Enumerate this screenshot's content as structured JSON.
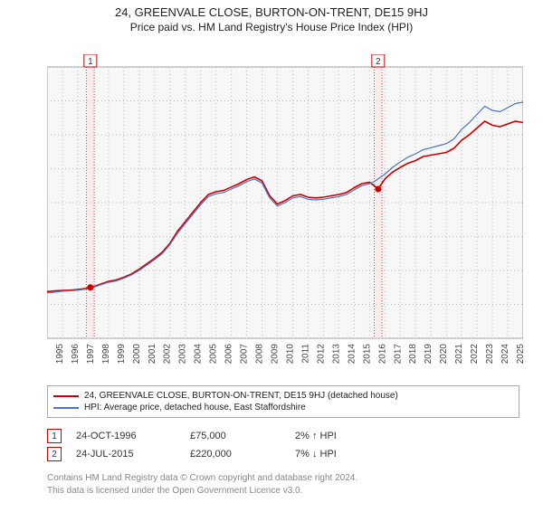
{
  "title": "24, GREENVALE CLOSE, BURTON-ON-TRENT, DE15 9HJ",
  "subtitle": "Price paid vs. HM Land Registry's House Price Index (HPI)",
  "chart": {
    "type": "line",
    "background_color": "#f7f7f7",
    "plot_border_color": "#999999",
    "grid_color": "#bbbbbb",
    "x": {
      "min": 1994,
      "max": 2025,
      "tick_step": 1,
      "label_fontsize": 10,
      "rotate": -90
    },
    "y": {
      "min": 0,
      "max": 400000,
      "tick_step": 50000,
      "prefix": "£",
      "suffix": "K",
      "divide": 1000,
      "label_fontsize": 10
    },
    "series": [
      {
        "key": "property",
        "label": "24, GREENVALE CLOSE, BURTON-ON-TRENT, DE15 9HJ (detached house)",
        "color": "#cc0000",
        "line_width": 1.6,
        "points": [
          [
            1994.0,
            69000
          ],
          [
            1994.5,
            70000
          ],
          [
            1995.0,
            70500
          ],
          [
            1995.5,
            71000
          ],
          [
            1996.0,
            72000
          ],
          [
            1996.5,
            73500
          ],
          [
            1996.82,
            75000
          ],
          [
            1997.0,
            76000
          ],
          [
            1997.5,
            80000
          ],
          [
            1998.0,
            84000
          ],
          [
            1998.5,
            86000
          ],
          [
            1999.0,
            90000
          ],
          [
            1999.5,
            95000
          ],
          [
            2000.0,
            102000
          ],
          [
            2000.5,
            110000
          ],
          [
            2001.0,
            118000
          ],
          [
            2001.5,
            127000
          ],
          [
            2002.0,
            140000
          ],
          [
            2002.5,
            158000
          ],
          [
            2003.0,
            172000
          ],
          [
            2003.5,
            186000
          ],
          [
            2004.0,
            200000
          ],
          [
            2004.5,
            212000
          ],
          [
            2005.0,
            216000
          ],
          [
            2005.5,
            218000
          ],
          [
            2006.0,
            223000
          ],
          [
            2006.5,
            228000
          ],
          [
            2007.0,
            234000
          ],
          [
            2007.5,
            238000
          ],
          [
            2008.0,
            232000
          ],
          [
            2008.5,
            210000
          ],
          [
            2009.0,
            198000
          ],
          [
            2009.5,
            203000
          ],
          [
            2010.0,
            210000
          ],
          [
            2010.5,
            212000
          ],
          [
            2011.0,
            208000
          ],
          [
            2011.5,
            207000
          ],
          [
            2012.0,
            208000
          ],
          [
            2012.5,
            210000
          ],
          [
            2013.0,
            212000
          ],
          [
            2013.5,
            215000
          ],
          [
            2014.0,
            222000
          ],
          [
            2014.5,
            228000
          ],
          [
            2015.0,
            230000
          ],
          [
            2015.3,
            225000
          ],
          [
            2015.56,
            220000
          ],
          [
            2016.0,
            235000
          ],
          [
            2016.5,
            245000
          ],
          [
            2017.0,
            252000
          ],
          [
            2017.5,
            258000
          ],
          [
            2018.0,
            262000
          ],
          [
            2018.5,
            268000
          ],
          [
            2019.0,
            270000
          ],
          [
            2019.5,
            272000
          ],
          [
            2020.0,
            274000
          ],
          [
            2020.5,
            280000
          ],
          [
            2021.0,
            292000
          ],
          [
            2021.5,
            300000
          ],
          [
            2022.0,
            310000
          ],
          [
            2022.5,
            320000
          ],
          [
            2023.0,
            314000
          ],
          [
            2023.5,
            312000
          ],
          [
            2024.0,
            316000
          ],
          [
            2024.5,
            320000
          ],
          [
            2025.0,
            318000
          ]
        ]
      },
      {
        "key": "hpi",
        "label": "HPI: Average price, detached house, East Staffordshire",
        "color": "#4a74c9",
        "line_width": 1.2,
        "points": [
          [
            1994.0,
            67000
          ],
          [
            1994.5,
            68000
          ],
          [
            1995.0,
            69500
          ],
          [
            1995.5,
            70000
          ],
          [
            1996.0,
            71000
          ],
          [
            1996.5,
            72500
          ],
          [
            1996.82,
            73500
          ],
          [
            1997.0,
            75000
          ],
          [
            1997.5,
            79000
          ],
          [
            1998.0,
            82500
          ],
          [
            1998.5,
            84500
          ],
          [
            1999.0,
            88500
          ],
          [
            1999.5,
            93500
          ],
          [
            2000.0,
            100000
          ],
          [
            2000.5,
            108000
          ],
          [
            2001.0,
            116000
          ],
          [
            2001.5,
            125000
          ],
          [
            2002.0,
            138000
          ],
          [
            2002.5,
            155000
          ],
          [
            2003.0,
            169000
          ],
          [
            2003.5,
            183000
          ],
          [
            2004.0,
            197000
          ],
          [
            2004.5,
            209000
          ],
          [
            2005.0,
            213000
          ],
          [
            2005.5,
            215000
          ],
          [
            2006.0,
            220000
          ],
          [
            2006.5,
            225000
          ],
          [
            2007.0,
            231000
          ],
          [
            2007.5,
            235000
          ],
          [
            2008.0,
            229000
          ],
          [
            2008.5,
            207000
          ],
          [
            2009.0,
            195000
          ],
          [
            2009.5,
            200000
          ],
          [
            2010.0,
            207000
          ],
          [
            2010.5,
            209000
          ],
          [
            2011.0,
            205000
          ],
          [
            2011.5,
            204000
          ],
          [
            2012.0,
            205000
          ],
          [
            2012.5,
            207000
          ],
          [
            2013.0,
            209000
          ],
          [
            2013.5,
            212000
          ],
          [
            2014.0,
            219000
          ],
          [
            2014.5,
            225000
          ],
          [
            2015.0,
            228000
          ],
          [
            2015.3,
            231000
          ],
          [
            2015.56,
            235000
          ],
          [
            2016.0,
            242000
          ],
          [
            2016.5,
            252000
          ],
          [
            2017.0,
            260000
          ],
          [
            2017.5,
            267000
          ],
          [
            2018.0,
            272000
          ],
          [
            2018.5,
            278000
          ],
          [
            2019.0,
            281000
          ],
          [
            2019.5,
            284000
          ],
          [
            2020.0,
            287000
          ],
          [
            2020.5,
            294000
          ],
          [
            2021.0,
            308000
          ],
          [
            2021.5,
            318000
          ],
          [
            2022.0,
            330000
          ],
          [
            2022.5,
            342000
          ],
          [
            2023.0,
            336000
          ],
          [
            2023.5,
            334000
          ],
          [
            2024.0,
            340000
          ],
          [
            2024.5,
            346000
          ],
          [
            2025.0,
            348000
          ]
        ]
      }
    ],
    "markers": [
      {
        "n": "1",
        "x": 1996.82,
        "y": 75000,
        "band_width_years": 0.5
      },
      {
        "n": "2",
        "x": 2015.56,
        "y": 220000,
        "band_width_years": 0.5
      }
    ],
    "marker_point_color": "#cc0000",
    "marker_point_radius": 3.5
  },
  "legend": {
    "items": [
      {
        "color": "#cc0000",
        "label_key": "chart.series.0.label"
      },
      {
        "color": "#4a74c9",
        "label_key": "chart.series.1.label"
      }
    ]
  },
  "sales": [
    {
      "n": "1",
      "date": "24-OCT-1996",
      "price": "£75,000",
      "hpi_diff": "2% ↑ HPI"
    },
    {
      "n": "2",
      "date": "24-JUL-2015",
      "price": "£220,000",
      "hpi_diff": "7% ↓ HPI"
    }
  ],
  "footer": {
    "line1": "Contains HM Land Registry data © Crown copyright and database right 2024.",
    "line2": "This data is licensed under the Open Government Licence v3.0."
  }
}
